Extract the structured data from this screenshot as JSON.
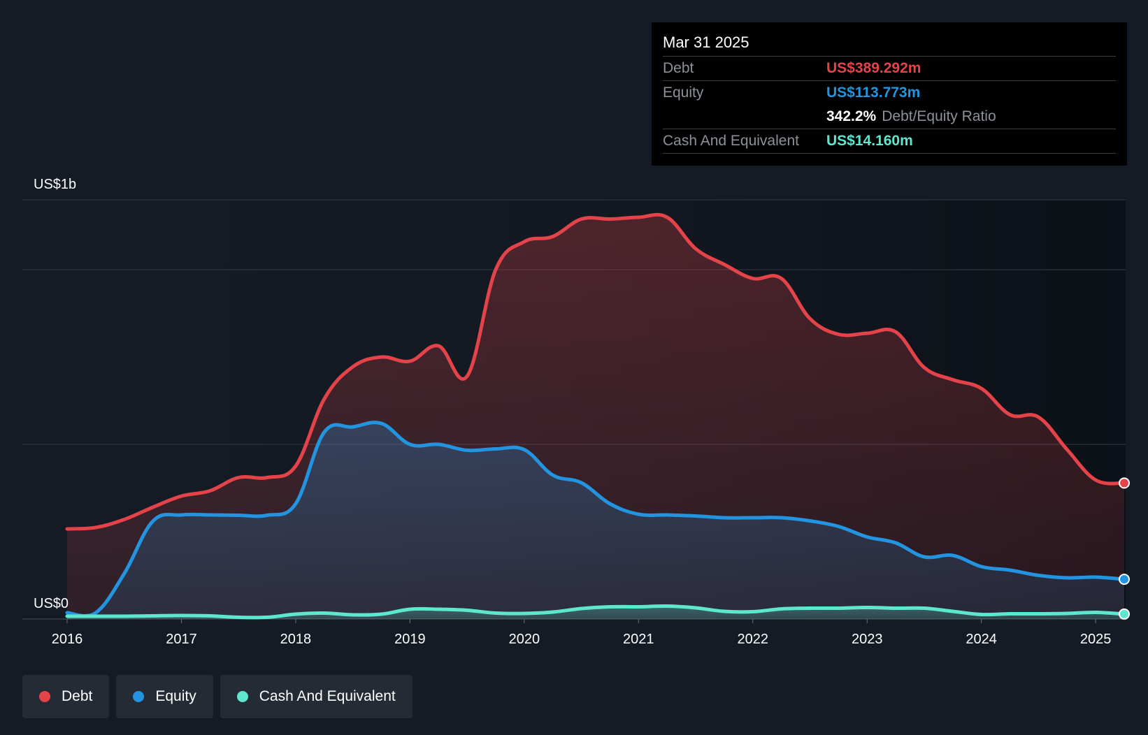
{
  "chart_data": {
    "type": "area",
    "y_axis": {
      "top_label": "US$1b",
      "bottom_label": "US$0",
      "ylim": [
        0,
        1200
      ],
      "gridlines": [
        0,
        500,
        1000,
        1200
      ]
    },
    "x_axis": {
      "tick_labels": [
        "2016",
        "2017",
        "2018",
        "2019",
        "2020",
        "2021",
        "2022",
        "2023",
        "2024",
        "2025"
      ],
      "xlim": [
        2016.0,
        2025.25
      ]
    },
    "series": [
      {
        "name": "Debt",
        "color": "#e5434a",
        "fill": "#e5434a",
        "points": [
          [
            2016.0,
            258
          ],
          [
            2016.25,
            262
          ],
          [
            2016.5,
            285
          ],
          [
            2016.75,
            320
          ],
          [
            2017.0,
            352
          ],
          [
            2017.25,
            367
          ],
          [
            2017.5,
            405
          ],
          [
            2017.75,
            405
          ],
          [
            2018.0,
            438
          ],
          [
            2018.25,
            630
          ],
          [
            2018.5,
            722
          ],
          [
            2018.75,
            750
          ],
          [
            2019.0,
            738
          ],
          [
            2019.25,
            782
          ],
          [
            2019.5,
            695
          ],
          [
            2019.75,
            1000
          ],
          [
            2020.0,
            1080
          ],
          [
            2020.25,
            1095
          ],
          [
            2020.5,
            1145
          ],
          [
            2020.75,
            1145
          ],
          [
            2021.0,
            1150
          ],
          [
            2021.25,
            1150
          ],
          [
            2021.5,
            1060
          ],
          [
            2021.75,
            1015
          ],
          [
            2022.0,
            975
          ],
          [
            2022.25,
            975
          ],
          [
            2022.5,
            860
          ],
          [
            2022.75,
            815
          ],
          [
            2023.0,
            818
          ],
          [
            2023.25,
            822
          ],
          [
            2023.5,
            720
          ],
          [
            2023.75,
            685
          ],
          [
            2024.0,
            660
          ],
          [
            2024.25,
            585
          ],
          [
            2024.5,
            578
          ],
          [
            2024.75,
            485
          ],
          [
            2025.0,
            398
          ],
          [
            2025.25,
            389.292
          ]
        ]
      },
      {
        "name": "Equity",
        "color": "#2394df",
        "fill": "#2394df",
        "points": [
          [
            2016.0,
            18
          ],
          [
            2016.25,
            18
          ],
          [
            2016.5,
            130
          ],
          [
            2016.75,
            280
          ],
          [
            2017.0,
            298
          ],
          [
            2017.25,
            298
          ],
          [
            2017.5,
            297
          ],
          [
            2017.75,
            297
          ],
          [
            2018.0,
            330
          ],
          [
            2018.25,
            535
          ],
          [
            2018.5,
            550
          ],
          [
            2018.75,
            560
          ],
          [
            2019.0,
            500
          ],
          [
            2019.25,
            500
          ],
          [
            2019.5,
            483
          ],
          [
            2019.75,
            487
          ],
          [
            2020.0,
            485
          ],
          [
            2020.25,
            412
          ],
          [
            2020.5,
            390
          ],
          [
            2020.75,
            330
          ],
          [
            2021.0,
            300
          ],
          [
            2021.25,
            298
          ],
          [
            2021.5,
            295
          ],
          [
            2021.75,
            290
          ],
          [
            2022.0,
            290
          ],
          [
            2022.25,
            290
          ],
          [
            2022.5,
            281
          ],
          [
            2022.75,
            265
          ],
          [
            2023.0,
            235
          ],
          [
            2023.25,
            218
          ],
          [
            2023.5,
            178
          ],
          [
            2023.75,
            182
          ],
          [
            2024.0,
            150
          ],
          [
            2024.25,
            140
          ],
          [
            2024.5,
            125
          ],
          [
            2024.75,
            118
          ],
          [
            2025.0,
            120
          ],
          [
            2025.25,
            113.773
          ]
        ]
      },
      {
        "name": "Cash And Equivalent",
        "color": "#5ee7cf",
        "fill": "#5ee7cf",
        "points": [
          [
            2016.0,
            8
          ],
          [
            2016.25,
            8
          ],
          [
            2016.5,
            8
          ],
          [
            2016.75,
            9
          ],
          [
            2017.0,
            10
          ],
          [
            2017.25,
            9
          ],
          [
            2017.5,
            5
          ],
          [
            2017.75,
            5
          ],
          [
            2018.0,
            14
          ],
          [
            2018.25,
            17
          ],
          [
            2018.5,
            12
          ],
          [
            2018.75,
            14
          ],
          [
            2019.0,
            28
          ],
          [
            2019.25,
            28
          ],
          [
            2019.5,
            25
          ],
          [
            2019.75,
            17
          ],
          [
            2020.0,
            16
          ],
          [
            2020.25,
            20
          ],
          [
            2020.5,
            30
          ],
          [
            2020.75,
            35
          ],
          [
            2021.0,
            35
          ],
          [
            2021.25,
            37
          ],
          [
            2021.5,
            32
          ],
          [
            2021.75,
            22
          ],
          [
            2022.0,
            21
          ],
          [
            2022.25,
            29
          ],
          [
            2022.5,
            31
          ],
          [
            2022.75,
            31
          ],
          [
            2023.0,
            33
          ],
          [
            2023.25,
            31
          ],
          [
            2023.5,
            31
          ],
          [
            2023.75,
            22
          ],
          [
            2024.0,
            13
          ],
          [
            2024.25,
            15
          ],
          [
            2024.5,
            15
          ],
          [
            2024.75,
            16
          ],
          [
            2025.0,
            19
          ],
          [
            2025.25,
            14.16
          ]
        ]
      }
    ]
  },
  "tooltip": {
    "date": "Mar 31 2025",
    "debt_label": "Debt",
    "debt_value": "US$389.292m",
    "equity_label": "Equity",
    "equity_value": "US$113.773m",
    "ratio_value": "342.2%",
    "ratio_label": "Debt/Equity Ratio",
    "cash_label": "Cash And Equivalent",
    "cash_value": "US$14.160m",
    "colors": {
      "debt": "#e5434a",
      "equity": "#2394df",
      "cash": "#5ee7cf"
    }
  },
  "legend": {
    "items": [
      {
        "label": "Debt",
        "color": "#e5434a"
      },
      {
        "label": "Equity",
        "color": "#2394df"
      },
      {
        "label": "Cash And Equivalent",
        "color": "#5ee7cf"
      }
    ]
  }
}
